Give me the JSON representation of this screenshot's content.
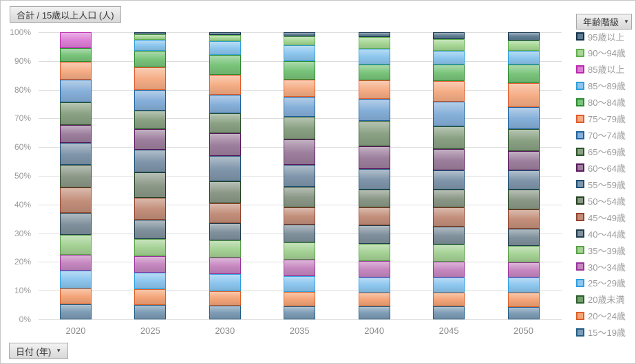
{
  "header": {
    "measure_label": "合計 / 15歳以上人口 (人)"
  },
  "legend": {
    "title": "年齢階級",
    "dropdown_icon": "▼"
  },
  "x_axis": {
    "field_chip_label": "日付 (年)",
    "dropdown_icon": "▼"
  },
  "y_axis": {
    "ticks": [
      "100%",
      "90%",
      "80%",
      "70%",
      "60%",
      "50%",
      "40%",
      "30%",
      "20%",
      "10%",
      "0%"
    ]
  },
  "chart_data": {
    "type": "bar",
    "subtype": "100%-stacked-vertical",
    "title": "合計 / 15歳以上人口 (人)",
    "xlabel": "日付 (年)",
    "ylabel": "",
    "unit": "%",
    "ylim": [
      0,
      100
    ],
    "grid": true,
    "legend_position": "right",
    "legend_title": "年齢階級",
    "stacking_note": "series listed in legend order (top to bottom); bars stack with last series at the bottom",
    "categories": [
      "2020",
      "2025",
      "2030",
      "2035",
      "2040",
      "2045",
      "2050"
    ],
    "series": [
      {
        "name": "95歳以上",
        "fill": "#5e7d93",
        "border": "#13324a",
        "values": [
          0,
          0.6,
          0.9,
          1.4,
          1.7,
          2.3,
          2.9
        ]
      },
      {
        "name": "90〜94歳",
        "fill": "#a6d795",
        "border": "#5fae4e",
        "values": [
          0,
          2.0,
          2.3,
          3.1,
          4.0,
          4.2,
          3.6
        ]
      },
      {
        "name": "85歳以上",
        "fill": "#dd7fd5",
        "border": "#b928ad",
        "values": [
          5.6,
          0,
          0,
          0,
          0,
          0,
          0
        ]
      },
      {
        "name": "85〜89歳",
        "fill": "#8cc6ee",
        "border": "#2f9fd8",
        "values": [
          0,
          3.8,
          4.6,
          5.5,
          5.5,
          4.8,
          4.8
        ]
      },
      {
        "name": "80〜84歳",
        "fill": "#79c47a",
        "border": "#2c8a30",
        "values": [
          4.6,
          5.8,
          7.1,
          6.4,
          5.5,
          5.7,
          6.5
        ]
      },
      {
        "name": "75〜79歳",
        "fill": "#f5ad85",
        "border": "#e05b2b",
        "values": [
          6.2,
          7.8,
          6.9,
          6.2,
          6.5,
          7.2,
          8.2
        ]
      },
      {
        "name": "70〜74歳",
        "fill": "#86b0da",
        "border": "#1d629f",
        "values": [
          8.1,
          7.2,
          6.4,
          6.9,
          7.7,
          8.6,
          7.8
        ]
      },
      {
        "name": "65〜69歳",
        "fill": "#8aa183",
        "border": "#2b5429",
        "values": [
          7.9,
          6.6,
          7.0,
          7.9,
          8.8,
          7.9,
          7.5
        ]
      },
      {
        "name": "60〜64歳",
        "fill": "#9d7f9d",
        "border": "#5b175e",
        "values": [
          6.2,
          7.1,
          7.9,
          8.8,
          7.8,
          7.4,
          6.8
        ]
      },
      {
        "name": "55〜59歳",
        "fill": "#8096ab",
        "border": "#1c4f77",
        "values": [
          7.5,
          7.9,
          8.8,
          7.7,
          7.2,
          6.6,
          6.7
        ]
      },
      {
        "name": "50〜54歳",
        "fill": "#8b9887",
        "border": "#23421f",
        "values": [
          8.0,
          8.8,
          7.6,
          7.0,
          6.4,
          6.4,
          6.8
        ]
      },
      {
        "name": "45〜49歳",
        "fill": "#c38f7b",
        "border": "#94442b",
        "values": [
          8.9,
          7.6,
          6.9,
          6.2,
          6.2,
          6.5,
          6.7
        ]
      },
      {
        "name": "40〜44歳",
        "fill": "#80919d",
        "border": "#1f3c4d",
        "values": [
          7.5,
          6.8,
          6.1,
          6.0,
          6.3,
          6.4,
          6.1
        ]
      },
      {
        "name": "35〜39歳",
        "fill": "#a5d295",
        "border": "#57a046",
        "values": [
          7.0,
          6.0,
          5.8,
          6.0,
          6.1,
          5.9,
          5.7
        ]
      },
      {
        "name": "30〜34歳",
        "fill": "#c687c0",
        "border": "#99339c",
        "values": [
          5.6,
          5.7,
          5.9,
          5.9,
          5.6,
          5.5,
          5.4
        ]
      },
      {
        "name": "25〜29歳",
        "fill": "#8dc6ef",
        "border": "#2e9fdf",
        "values": [
          6.1,
          5.7,
          5.8,
          5.4,
          5.3,
          5.2,
          5.2
        ]
      },
      {
        "name": "20歳未満",
        "fill": "#74a06e",
        "border": "#2d5f2d",
        "values": [
          0,
          0,
          0,
          0,
          0,
          0,
          0
        ]
      },
      {
        "name": "20〜24歳",
        "fill": "#f4a478",
        "border": "#da6027",
        "values": [
          5.5,
          5.6,
          5.2,
          5.0,
          4.9,
          4.9,
          4.9
        ]
      },
      {
        "name": "15〜19歳",
        "fill": "#7d9cb5",
        "border": "#215e87",
        "values": [
          5.3,
          5.0,
          4.7,
          4.6,
          4.5,
          4.5,
          4.4
        ]
      }
    ]
  }
}
